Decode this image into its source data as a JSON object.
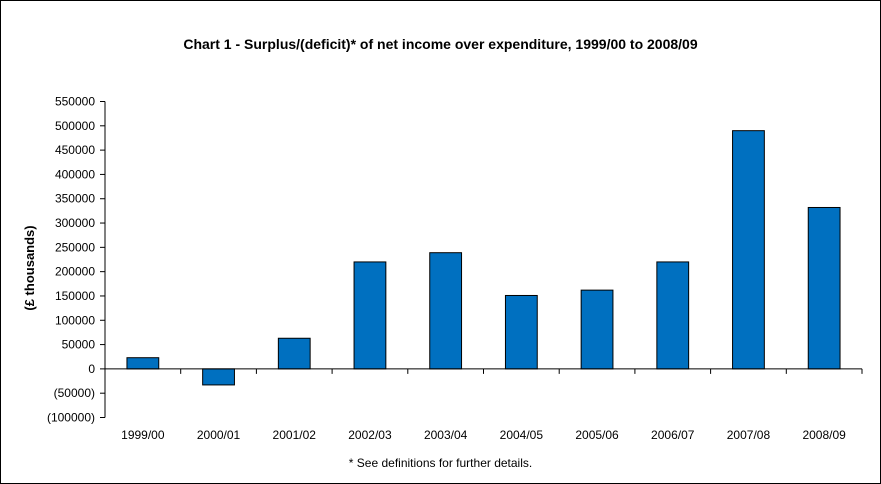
{
  "chart_data": {
    "type": "bar",
    "title": "Chart 1 - Surplus/(deficit)* of net income over expenditure, 1999/00 to 2008/09",
    "xlabel": "",
    "ylabel": "(£ thousands)",
    "footnote": "* See definitions for further details.",
    "categories": [
      "1999/00",
      "2000/01",
      "2001/02",
      "2002/03",
      "2003/04",
      "2004/05",
      "2005/06",
      "2006/07",
      "2007/08",
      "2008/09"
    ],
    "values": [
      23000,
      -33000,
      63000,
      220000,
      239000,
      151000,
      162000,
      220000,
      490000,
      332000
    ],
    "ylim": [
      -100000,
      550000
    ],
    "yticks": [
      550000,
      500000,
      450000,
      400000,
      350000,
      300000,
      250000,
      200000,
      150000,
      100000,
      50000,
      0,
      -50000,
      -100000
    ],
    "ytick_labels": [
      "550000",
      "500000",
      "450000",
      "400000",
      "350000",
      "300000",
      "250000",
      "200000",
      "150000",
      "100000",
      "50000",
      "0",
      "(50000)",
      "(100000)"
    ],
    "grid": false,
    "legend": "none",
    "bar_color": "#0070C0"
  }
}
